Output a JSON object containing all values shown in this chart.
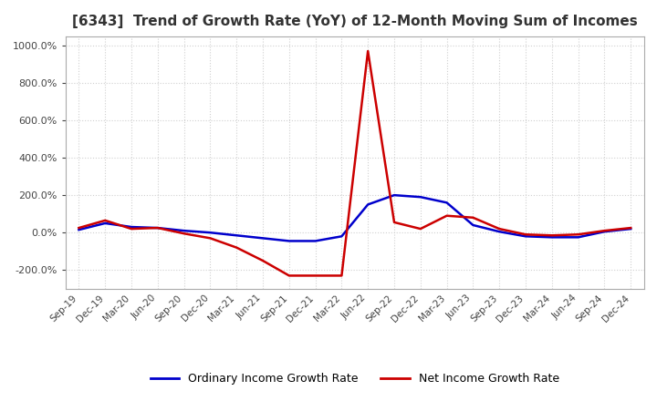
{
  "title": "[6343]  Trend of Growth Rate (YoY) of 12-Month Moving Sum of Incomes",
  "title_fontsize": 11,
  "ylim": [
    -300,
    1050
  ],
  "yticks": [
    -200,
    0,
    200,
    400,
    600,
    800,
    1000
  ],
  "background_color": "#ffffff",
  "grid_color": "#d0d0d0",
  "x_labels": [
    "Sep-19",
    "Dec-19",
    "Mar-20",
    "Jun-20",
    "Sep-20",
    "Dec-20",
    "Mar-21",
    "Jun-21",
    "Sep-21",
    "Dec-21",
    "Mar-22",
    "Jun-22",
    "Sep-22",
    "Dec-22",
    "Mar-23",
    "Jun-23",
    "Sep-23",
    "Dec-23",
    "Mar-24",
    "Jun-24",
    "Sep-24",
    "Dec-24"
  ],
  "ordinary_income_growth_rate": [
    15,
    50,
    30,
    25,
    10,
    0,
    -15,
    -30,
    -45,
    -45,
    -20,
    150,
    200,
    190,
    160,
    40,
    5,
    -20,
    -25,
    -25,
    5,
    20
  ],
  "net_income_growth_rate": [
    25,
    65,
    20,
    25,
    -5,
    -30,
    -80,
    -150,
    -230,
    -230,
    -230,
    970,
    55,
    20,
    90,
    80,
    20,
    -10,
    -15,
    -10,
    10,
    25
  ],
  "ordinary_color": "#0000cc",
  "net_color": "#cc0000",
  "line_width": 1.8,
  "legend_labels": [
    "Ordinary Income Growth Rate",
    "Net Income Growth Rate"
  ]
}
